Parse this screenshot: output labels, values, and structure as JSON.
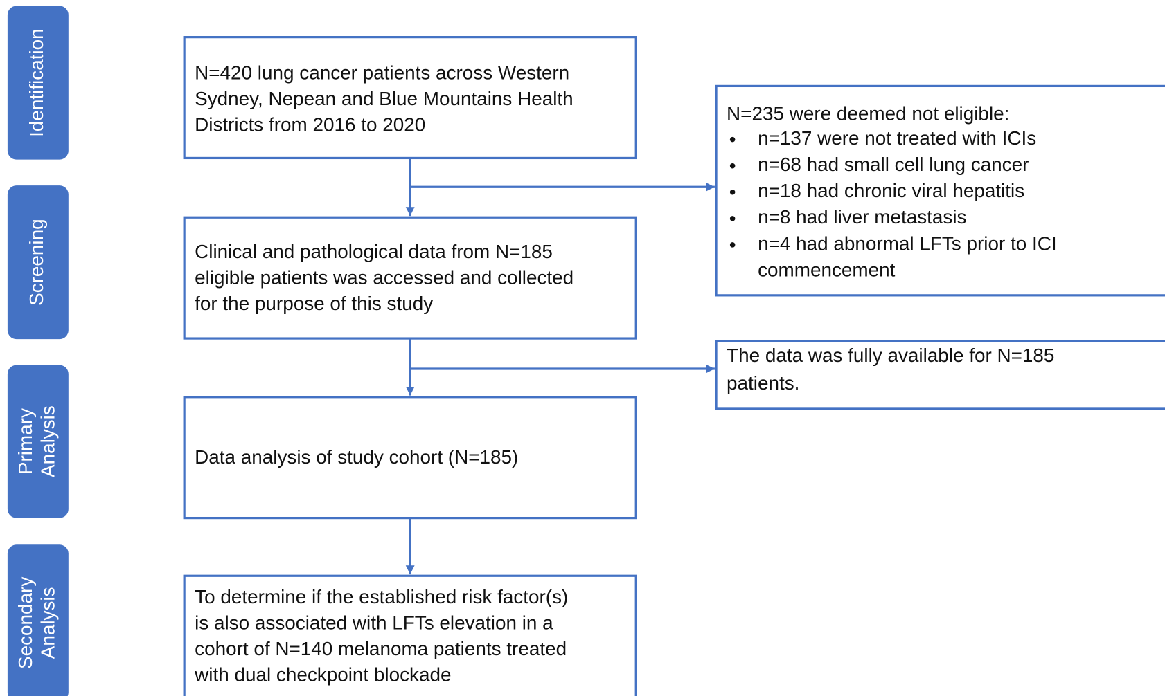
{
  "stages": [
    {
      "lines": [
        "Identification"
      ]
    },
    {
      "lines": [
        "Screening"
      ]
    },
    {
      "lines": [
        "Primary",
        "Analysis"
      ]
    },
    {
      "lines": [
        "Secondary",
        "Analysis"
      ]
    }
  ],
  "main_boxes": [
    {
      "lines": [
        "N=420 lung cancer patients across Western",
        "Sydney, Nepean and Blue Mountains Health",
        "Districts from 2016 to 2020"
      ]
    },
    {
      "lines": [
        "Clinical and pathological data from N=185",
        "eligible patients was accessed and collected",
        "for the purpose of this study"
      ]
    },
    {
      "lines": [
        "Data analysis of study cohort (N=185)"
      ]
    },
    {
      "lines": [
        "To determine if the established risk factor(s)",
        "is also associated with LFTs elevation in a",
        "cohort of N=140 melanoma patients treated",
        "with dual checkpoint blockade"
      ]
    }
  ],
  "side_boxes": [
    {
      "heading": "N=235 were deemed not eligible:",
      "items": [
        [
          "n=137 were not treated with ICIs"
        ],
        [
          "n=68 had small cell lung cancer"
        ],
        [
          "n=18 had chronic viral hepatitis"
        ],
        [
          "n=8 had liver metastasis"
        ],
        [
          "n=4 had abnormal LFTs prior to ICI",
          "commencement"
        ]
      ]
    },
    {
      "lines": [
        "The data was fully available for N=185",
        "patients."
      ]
    }
  ]
}
